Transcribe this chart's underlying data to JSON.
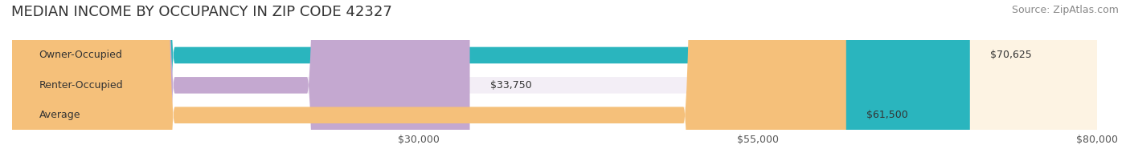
{
  "title": "MEDIAN INCOME BY OCCUPANCY IN ZIP CODE 42327",
  "source": "Source: ZipAtlas.com",
  "categories": [
    "Owner-Occupied",
    "Renter-Occupied",
    "Average"
  ],
  "values": [
    70625,
    33750,
    61500
  ],
  "labels": [
    "$70,625",
    "$33,750",
    "$61,500"
  ],
  "bar_colors": [
    "#2ab5be",
    "#c4a8d0",
    "#f5c07a"
  ],
  "bar_bg_colors": [
    "#e8f8f9",
    "#f3eef6",
    "#fdf3e3"
  ],
  "xlim": [
    0,
    80000
  ],
  "xticks": [
    30000,
    55000,
    80000
  ],
  "xtick_labels": [
    "$30,000",
    "$55,000",
    "$80,000"
  ],
  "title_fontsize": 13,
  "source_fontsize": 9,
  "label_fontsize": 9,
  "category_fontsize": 9,
  "bar_height": 0.55,
  "background_color": "#ffffff"
}
